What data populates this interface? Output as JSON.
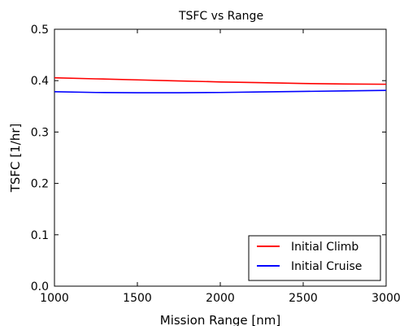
{
  "chart_data": {
    "type": "line",
    "title": "TSFC vs Range",
    "xlabel": "Mission Range [nm]",
    "ylabel": "TSFC [1/hr]",
    "xlim": [
      1000,
      3000
    ],
    "ylim": [
      0.0,
      0.5
    ],
    "xticks": [
      1000,
      1500,
      2000,
      2500,
      3000
    ],
    "xtick_labels": [
      "1000",
      "1500",
      "2000",
      "2500",
      "3000"
    ],
    "yticks": [
      0.0,
      0.1,
      0.2,
      0.3,
      0.4,
      0.5
    ],
    "ytick_labels": [
      "0.0",
      "0.1",
      "0.2",
      "0.3",
      "0.4",
      "0.5"
    ],
    "grid": false,
    "legend": "lower right",
    "series": [
      {
        "name": "Initial Climb",
        "color": "#ff0000",
        "x": [
          1000,
          1250,
          1500,
          1750,
          2000,
          2250,
          2500,
          2750,
          3000
        ],
        "y": [
          0.4055,
          0.4035,
          0.4015,
          0.3995,
          0.3975,
          0.396,
          0.3945,
          0.3935,
          0.393
        ]
      },
      {
        "name": "Initial Cruise",
        "color": "#0000ff",
        "x": [
          1000,
          1250,
          1500,
          1750,
          2000,
          2250,
          2500,
          2750,
          3000
        ],
        "y": [
          0.3785,
          0.377,
          0.3765,
          0.3765,
          0.377,
          0.378,
          0.379,
          0.38,
          0.381
        ]
      }
    ]
  }
}
